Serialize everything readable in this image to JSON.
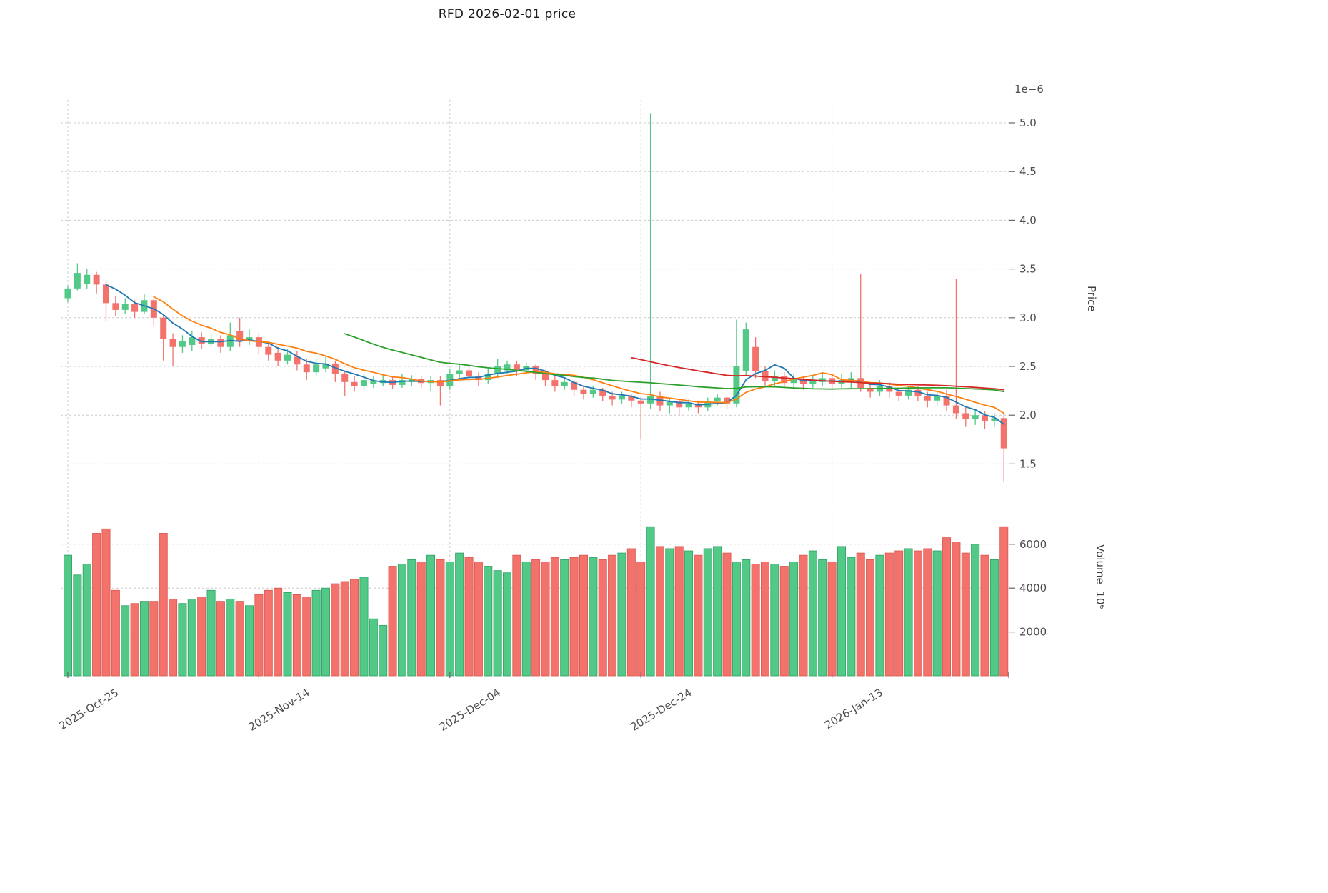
{
  "title": "RFD  2026-02-01  price",
  "chart_data": {
    "type": "candlestick_with_volume",
    "price_axis": {
      "label": "Price",
      "multiplier": "1e−6",
      "range": [
        1.25,
        5.15
      ],
      "ticks": [
        {
          "v": 1.5,
          "label": "1.5"
        },
        {
          "v": 2.0,
          "label": "2.0"
        },
        {
          "v": 2.5,
          "label": "2.5"
        },
        {
          "v": 3.0,
          "label": "3.0"
        },
        {
          "v": 3.5,
          "label": "3.5"
        },
        {
          "v": 4.0,
          "label": "4.0"
        },
        {
          "v": 4.5,
          "label": "4.5"
        },
        {
          "v": 5.0,
          "label": "5.0"
        }
      ]
    },
    "volume_axis": {
      "label": "Volume  10⁶",
      "range": [
        0,
        7300
      ],
      "ticks": [
        {
          "v": 2000,
          "label": "2000"
        },
        {
          "v": 4000,
          "label": "4000"
        },
        {
          "v": 6000,
          "label": "6000"
        }
      ]
    },
    "x_ticks": [
      {
        "i": 0,
        "label": "2025-Oct-25"
      },
      {
        "i": 20,
        "label": "2025-Nov-14"
      },
      {
        "i": 40,
        "label": "2025-Dec-04"
      },
      {
        "i": 60,
        "label": "2025-Dec-24"
      },
      {
        "i": 80,
        "label": "2026-Jan-13"
      }
    ],
    "moving_averages": [
      {
        "name": "MA5",
        "window": 5,
        "color": "#1f77b4"
      },
      {
        "name": "MA10",
        "window": 10,
        "color": "#ff7f0e"
      },
      {
        "name": "MA30",
        "window": 30,
        "color": "#2ca02c"
      },
      {
        "name": "MA60",
        "window": 60,
        "color": "#d62728"
      }
    ],
    "colors": {
      "up": "#53c987",
      "down": "#f3736c",
      "up_edge": "#2f9e66",
      "down_edge": "#d8574f",
      "grid": "#cccccc",
      "tick_text": "#4d4d4d",
      "tick_mark": "#666666"
    },
    "candles_format": [
      "date",
      "open",
      "high",
      "low",
      "close",
      "volume_millions"
    ],
    "candles": [
      [
        "2025-10-25",
        3.2,
        3.33,
        3.16,
        3.3,
        5500
      ],
      [
        "2025-10-26",
        3.3,
        3.56,
        3.28,
        3.46,
        4600
      ],
      [
        "2025-10-27",
        3.35,
        3.5,
        3.3,
        3.44,
        5100
      ],
      [
        "2025-10-28",
        3.44,
        3.47,
        3.25,
        3.34,
        6500
      ],
      [
        "2025-10-29",
        3.34,
        3.38,
        2.96,
        3.15,
        6700
      ],
      [
        "2025-10-30",
        3.15,
        3.22,
        3.02,
        3.08,
        3900
      ],
      [
        "2025-10-31",
        3.08,
        3.2,
        3.04,
        3.14,
        3200
      ],
      [
        "2025-11-01",
        3.14,
        3.18,
        3.0,
        3.06,
        3300
      ],
      [
        "2025-11-02",
        3.06,
        3.24,
        3.04,
        3.18,
        3400
      ],
      [
        "2025-11-03",
        3.18,
        3.2,
        2.92,
        3.0,
        3400
      ],
      [
        "2025-11-04",
        3.0,
        3.04,
        2.56,
        2.78,
        6500
      ],
      [
        "2025-11-05",
        2.78,
        2.84,
        2.5,
        2.7,
        3500
      ],
      [
        "2025-11-06",
        2.7,
        2.82,
        2.64,
        2.76,
        3300
      ],
      [
        "2025-11-07",
        2.72,
        2.86,
        2.66,
        2.8,
        3500
      ],
      [
        "2025-11-08",
        2.8,
        2.85,
        2.68,
        2.73,
        3600
      ],
      [
        "2025-11-09",
        2.73,
        2.84,
        2.7,
        2.78,
        3900
      ],
      [
        "2025-11-10",
        2.78,
        2.82,
        2.64,
        2.7,
        3400
      ],
      [
        "2025-11-11",
        2.7,
        2.95,
        2.66,
        2.82,
        3500
      ],
      [
        "2025-11-12",
        2.86,
        3.0,
        2.7,
        2.76,
        3400
      ],
      [
        "2025-11-13",
        2.76,
        2.88,
        2.72,
        2.8,
        3200
      ],
      [
        "2025-11-14",
        2.8,
        2.84,
        2.62,
        2.7,
        3700
      ],
      [
        "2025-11-15",
        2.7,
        2.76,
        2.56,
        2.62,
        3900
      ],
      [
        "2025-11-16",
        2.64,
        2.7,
        2.5,
        2.56,
        4000
      ],
      [
        "2025-11-17",
        2.56,
        2.68,
        2.52,
        2.62,
        3800
      ],
      [
        "2025-11-18",
        2.6,
        2.66,
        2.46,
        2.52,
        3700
      ],
      [
        "2025-11-19",
        2.52,
        2.58,
        2.36,
        2.44,
        3600
      ],
      [
        "2025-11-20",
        2.44,
        2.58,
        2.4,
        2.52,
        3900
      ],
      [
        "2025-11-21",
        2.48,
        2.6,
        2.44,
        2.53,
        4000
      ],
      [
        "2025-11-22",
        2.53,
        2.56,
        2.34,
        2.42,
        4200
      ],
      [
        "2025-11-23",
        2.42,
        2.46,
        2.2,
        2.34,
        4300
      ],
      [
        "2025-11-24",
        2.34,
        2.4,
        2.24,
        2.3,
        4400
      ],
      [
        "2025-11-25",
        2.3,
        2.42,
        2.26,
        2.36,
        4500
      ],
      [
        "2025-11-26",
        2.32,
        2.4,
        2.28,
        2.35,
        2600
      ],
      [
        "2025-11-27",
        2.33,
        2.42,
        2.3,
        2.36,
        2300
      ],
      [
        "2025-11-28",
        2.36,
        2.4,
        2.27,
        2.31,
        5000
      ],
      [
        "2025-11-29",
        2.31,
        2.42,
        2.28,
        2.36,
        5100
      ],
      [
        "2025-11-30",
        2.34,
        2.41,
        2.3,
        2.37,
        5300
      ],
      [
        "2025-12-01",
        2.37,
        2.4,
        2.28,
        2.33,
        5200
      ],
      [
        "2025-12-02",
        2.33,
        2.4,
        2.25,
        2.36,
        5500
      ],
      [
        "2025-12-03",
        2.36,
        2.4,
        2.1,
        2.3,
        5300
      ],
      [
        "2025-12-04",
        2.3,
        2.48,
        2.26,
        2.42,
        5200
      ],
      [
        "2025-12-05",
        2.42,
        2.52,
        2.38,
        2.46,
        5600
      ],
      [
        "2025-12-06",
        2.46,
        2.5,
        2.34,
        2.4,
        5400
      ],
      [
        "2025-12-07",
        2.4,
        2.44,
        2.3,
        2.36,
        5200
      ],
      [
        "2025-12-08",
        2.36,
        2.48,
        2.32,
        2.42,
        5000
      ],
      [
        "2025-12-09",
        2.42,
        2.58,
        2.38,
        2.5,
        4800
      ],
      [
        "2025-12-10",
        2.46,
        2.56,
        2.42,
        2.52,
        4700
      ],
      [
        "2025-12-11",
        2.52,
        2.56,
        2.4,
        2.46,
        5500
      ],
      [
        "2025-12-12",
        2.46,
        2.54,
        2.42,
        2.5,
        5200
      ],
      [
        "2025-12-13",
        2.5,
        2.52,
        2.36,
        2.42,
        5300
      ],
      [
        "2025-12-14",
        2.42,
        2.46,
        2.3,
        2.36,
        5200
      ],
      [
        "2025-12-15",
        2.36,
        2.4,
        2.24,
        2.3,
        5400
      ],
      [
        "2025-12-16",
        2.3,
        2.38,
        2.26,
        2.34,
        5300
      ],
      [
        "2025-12-17",
        2.34,
        2.36,
        2.2,
        2.26,
        5400
      ],
      [
        "2025-12-18",
        2.26,
        2.3,
        2.16,
        2.22,
        5500
      ],
      [
        "2025-12-19",
        2.22,
        2.3,
        2.18,
        2.26,
        5400
      ],
      [
        "2025-12-20",
        2.26,
        2.28,
        2.14,
        2.2,
        5300
      ],
      [
        "2025-12-21",
        2.2,
        2.24,
        2.1,
        2.16,
        5500
      ],
      [
        "2025-12-22",
        2.16,
        2.24,
        2.12,
        2.2,
        5600
      ],
      [
        "2025-12-23",
        2.2,
        2.22,
        2.08,
        2.15,
        5800
      ],
      [
        "2025-12-24",
        2.15,
        2.18,
        1.76,
        2.12,
        5200
      ],
      [
        "2025-12-25",
        2.12,
        5.1,
        2.06,
        2.2,
        6800
      ],
      [
        "2025-12-26",
        2.2,
        2.24,
        2.04,
        2.1,
        5900
      ],
      [
        "2025-12-27",
        2.1,
        2.18,
        2.02,
        2.14,
        5800
      ],
      [
        "2025-12-28",
        2.14,
        2.16,
        2.0,
        2.08,
        5900
      ],
      [
        "2025-12-29",
        2.08,
        2.16,
        2.04,
        2.12,
        5700
      ],
      [
        "2025-12-30",
        2.12,
        2.15,
        2.02,
        2.08,
        5500
      ],
      [
        "2025-12-31",
        2.08,
        2.18,
        2.04,
        2.14,
        5800
      ],
      [
        "2026-01-01",
        2.14,
        2.22,
        2.1,
        2.18,
        5900
      ],
      [
        "2026-01-02",
        2.18,
        2.2,
        2.06,
        2.12,
        5600
      ],
      [
        "2026-01-03",
        2.12,
        2.98,
        2.08,
        2.5,
        5200
      ],
      [
        "2026-01-04",
        2.45,
        2.95,
        2.4,
        2.88,
        5300
      ],
      [
        "2026-01-05",
        2.7,
        2.8,
        2.38,
        2.45,
        5100
      ],
      [
        "2026-01-06",
        2.45,
        2.5,
        2.3,
        2.35,
        5200
      ],
      [
        "2026-01-07",
        2.35,
        2.46,
        2.3,
        2.4,
        5100
      ],
      [
        "2026-01-08",
        2.4,
        2.44,
        2.28,
        2.33,
        5000
      ],
      [
        "2026-01-09",
        2.33,
        2.42,
        2.28,
        2.37,
        5200
      ],
      [
        "2026-01-10",
        2.37,
        2.4,
        2.26,
        2.32,
        5500
      ],
      [
        "2026-01-11",
        2.32,
        2.4,
        2.28,
        2.36,
        5700
      ],
      [
        "2026-01-12",
        2.34,
        2.44,
        2.3,
        2.38,
        5300
      ],
      [
        "2026-01-13",
        2.38,
        2.42,
        2.26,
        2.32,
        5200
      ],
      [
        "2026-01-14",
        2.32,
        2.42,
        2.28,
        2.36,
        5900
      ],
      [
        "2026-01-15",
        2.34,
        2.44,
        2.28,
        2.38,
        5400
      ],
      [
        "2026-01-16",
        2.38,
        3.45,
        2.24,
        2.28,
        5600
      ],
      [
        "2026-01-17",
        2.28,
        2.34,
        2.18,
        2.24,
        5300
      ],
      [
        "2026-01-18",
        2.24,
        2.36,
        2.2,
        2.3,
        5500
      ],
      [
        "2026-01-19",
        2.3,
        2.34,
        2.18,
        2.24,
        5600
      ],
      [
        "2026-01-20",
        2.24,
        2.28,
        2.14,
        2.2,
        5700
      ],
      [
        "2026-01-21",
        2.2,
        2.3,
        2.16,
        2.26,
        5800
      ],
      [
        "2026-01-22",
        2.26,
        2.3,
        2.14,
        2.2,
        5700
      ],
      [
        "2026-01-23",
        2.2,
        2.24,
        2.08,
        2.15,
        5800
      ],
      [
        "2026-01-24",
        2.15,
        2.25,
        2.1,
        2.2,
        5700
      ],
      [
        "2026-01-25",
        2.2,
        2.26,
        2.04,
        2.1,
        6300
      ],
      [
        "2026-01-26",
        2.1,
        3.4,
        1.96,
        2.02,
        6100
      ],
      [
        "2026-01-27",
        2.02,
        2.08,
        1.88,
        1.96,
        5600
      ],
      [
        "2026-01-28",
        1.96,
        2.06,
        1.9,
        2.0,
        6000
      ],
      [
        "2026-01-29",
        2.0,
        2.04,
        1.86,
        1.94,
        5500
      ],
      [
        "2026-01-30",
        1.94,
        2.02,
        1.88,
        1.97,
        5300
      ],
      [
        "2026-01-31",
        1.97,
        2.02,
        1.32,
        1.66,
        6800
      ]
    ]
  }
}
